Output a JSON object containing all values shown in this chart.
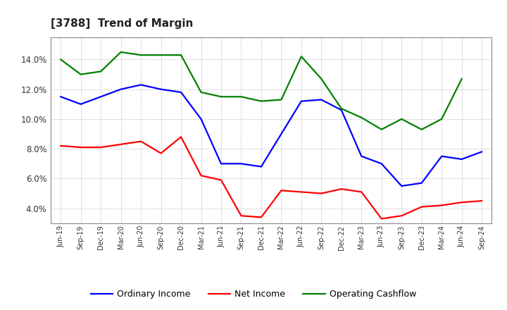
{
  "title": "[3788]  Trend of Margin",
  "x_labels": [
    "Jun-19",
    "Sep-19",
    "Dec-19",
    "Mar-20",
    "Jun-20",
    "Sep-20",
    "Dec-20",
    "Mar-21",
    "Jun-21",
    "Sep-21",
    "Dec-21",
    "Mar-22",
    "Jun-22",
    "Sep-22",
    "Dec-22",
    "Mar-23",
    "Jun-23",
    "Sep-23",
    "Dec-23",
    "Mar-24",
    "Jun-24",
    "Sep-24"
  ],
  "ordinary_income": [
    11.5,
    11.0,
    11.5,
    12.0,
    12.3,
    12.0,
    11.8,
    10.0,
    7.0,
    7.0,
    6.8,
    9.0,
    11.2,
    11.3,
    10.6,
    7.5,
    7.0,
    5.5,
    5.7,
    7.5,
    7.3,
    7.8
  ],
  "net_income": [
    8.2,
    8.1,
    8.1,
    8.3,
    8.5,
    7.7,
    8.8,
    6.2,
    5.9,
    3.5,
    3.4,
    5.2,
    5.1,
    5.0,
    5.3,
    5.1,
    3.3,
    3.5,
    4.1,
    4.2,
    4.4,
    4.5
  ],
  "operating_cashflow": [
    14.0,
    13.0,
    13.2,
    14.5,
    14.3,
    14.3,
    14.3,
    11.8,
    11.5,
    11.5,
    11.2,
    11.3,
    14.2,
    12.7,
    10.7,
    10.1,
    9.3,
    10.0,
    9.3,
    10.0,
    12.7,
    null
  ],
  "ordinary_income_color": "#0000FF",
  "net_income_color": "#FF0000",
  "operating_cashflow_color": "#008000",
  "ylim_min": 3.0,
  "ylim_max": 15.5,
  "yticks": [
    4.0,
    6.0,
    8.0,
    10.0,
    12.0,
    14.0
  ],
  "background_color": "#FFFFFF",
  "plot_bg_color": "#FFFFFF",
  "grid_color": "#999999",
  "legend_labels": [
    "Ordinary Income",
    "Net Income",
    "Operating Cashflow"
  ]
}
